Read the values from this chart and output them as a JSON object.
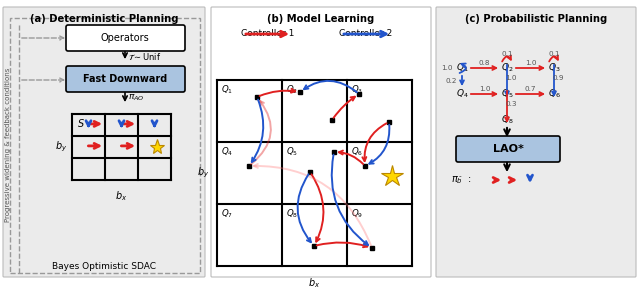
{
  "panel_a_title": "(a) Deterministic Planning",
  "panel_b_title": "(b) Model Learning",
  "panel_c_title": "(c) Probabilistic Planning",
  "bottom_label": "Bayes Optimistic SDAC",
  "left_label": "Progressive widening & feedback conditions",
  "red": "#e02020",
  "blue": "#2255cc",
  "light_blue_box": "#aac4e0",
  "panel_bg": "#ebebeb"
}
